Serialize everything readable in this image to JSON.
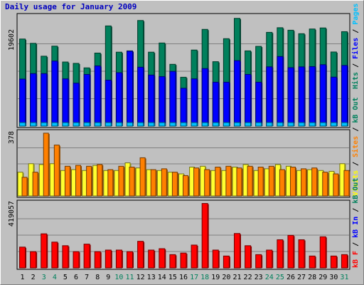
{
  "chart_data": {
    "type": "bar",
    "title": "Daily usage for January 2009",
    "days": [
      "1",
      "2",
      "3",
      "4",
      "5",
      "6",
      "7",
      "8",
      "9",
      "10",
      "11",
      "12",
      "13",
      "14",
      "15",
      "16",
      "17",
      "18",
      "19",
      "20",
      "21",
      "22",
      "23",
      "24",
      "25",
      "26",
      "27",
      "28",
      "29",
      "30",
      "31"
    ],
    "weekend_days": [
      3,
      4,
      10,
      11,
      17,
      18,
      24,
      25,
      31
    ],
    "panels": [
      {
        "ymax_label": "19602",
        "ymax": 19602,
        "legend": [
          {
            "text": "Hits",
            "color": "#00805c"
          },
          {
            "text": "Files",
            "color": "#0000ff"
          },
          {
            "text": "Pages",
            "color": "#00c0ff"
          }
        ],
        "series": [
          {
            "name": "Hits",
            "color": "#00805c",
            "values": [
              15560,
              14790,
              12490,
              14290,
              11450,
              11210,
              10410,
              13050,
              17900,
              13210,
              13440,
              18870,
              13210,
              14850,
              11040,
              8730,
              13590,
              17280,
              11510,
              15620,
              19250,
              13440,
              14250,
              16750,
              17580,
              17130,
              16510,
              17350,
              17540,
              13240,
              16870
            ]
          },
          {
            "name": "Files",
            "color": "#0000ff",
            "values": [
              8400,
              9380,
              9380,
              11620,
              8440,
              7670,
              9230,
              10750,
              8210,
              9540,
              13390,
              10520,
              9120,
              8840,
              9770,
              6760,
              8440,
              10280,
              7840,
              7840,
              11690,
              9230,
              7840,
              10590,
              12430,
              10440,
              10580,
              10630,
              10970,
              8750,
              10830
            ]
          },
          {
            "name": "Pages",
            "color": "#00c0ff",
            "values": [
              600,
              650,
              600,
              700,
              620,
              580,
              600,
              650,
              600,
              610,
              700,
              650,
              600,
              620,
              610,
              550,
              600,
              650,
              580,
              600,
              680,
              620,
              590,
              640,
              700,
              650,
              640,
              660,
              670,
              600,
              650
            ]
          }
        ]
      },
      {
        "ymax_label": "378",
        "ymax": 378,
        "legend": [
          {
            "text": "Visits",
            "color": "#ffff00"
          },
          {
            "text": "Sites",
            "color": "#ff8000"
          },
          {
            "text": "kB Out",
            "color": "#00805c"
          }
        ],
        "series": [
          {
            "name": "Visits",
            "color": "#ffff30",
            "values": [
              140,
              190,
              185,
              190,
              150,
              155,
              150,
              180,
              150,
              150,
              195,
              165,
              155,
              150,
              140,
              130,
              170,
              175,
              150,
              150,
              170,
              185,
              150,
              160,
              185,
              175,
              150,
              155,
              150,
              145,
              190
            ]
          },
          {
            "name": "Sites",
            "color": "#ff8000",
            "values": [
              110,
              140,
              370,
              300,
              175,
              180,
              175,
              185,
              155,
              175,
              170,
              225,
              155,
              160,
              140,
              120,
              165,
              155,
              170,
              175,
              165,
              175,
              170,
              175,
              155,
              170,
              160,
              165,
              140,
              130,
              150
            ]
          }
        ]
      },
      {
        "ymax_label": "419057",
        "ymax": 419057,
        "legend": [
          {
            "text": "kB F",
            "color": "#ff0000"
          },
          {
            "text": "kB In",
            "color": "#0000ff"
          },
          {
            "text": "kB Out",
            "color": "#00805c"
          }
        ],
        "series": [
          {
            "name": "kB F",
            "color": "#ff0000",
            "values": [
              133000,
              104000,
              218000,
              165000,
              142000,
              104000,
              152000,
              104000,
              114000,
              114000,
              104000,
              170000,
              114000,
              123000,
              85000,
              95000,
              146000,
              412000,
              114000,
              76000,
              220000,
              142000,
              85000,
              114000,
              180000,
              208000,
              180000,
              76000,
              199000,
              76000,
              85000
            ]
          }
        ]
      }
    ]
  }
}
